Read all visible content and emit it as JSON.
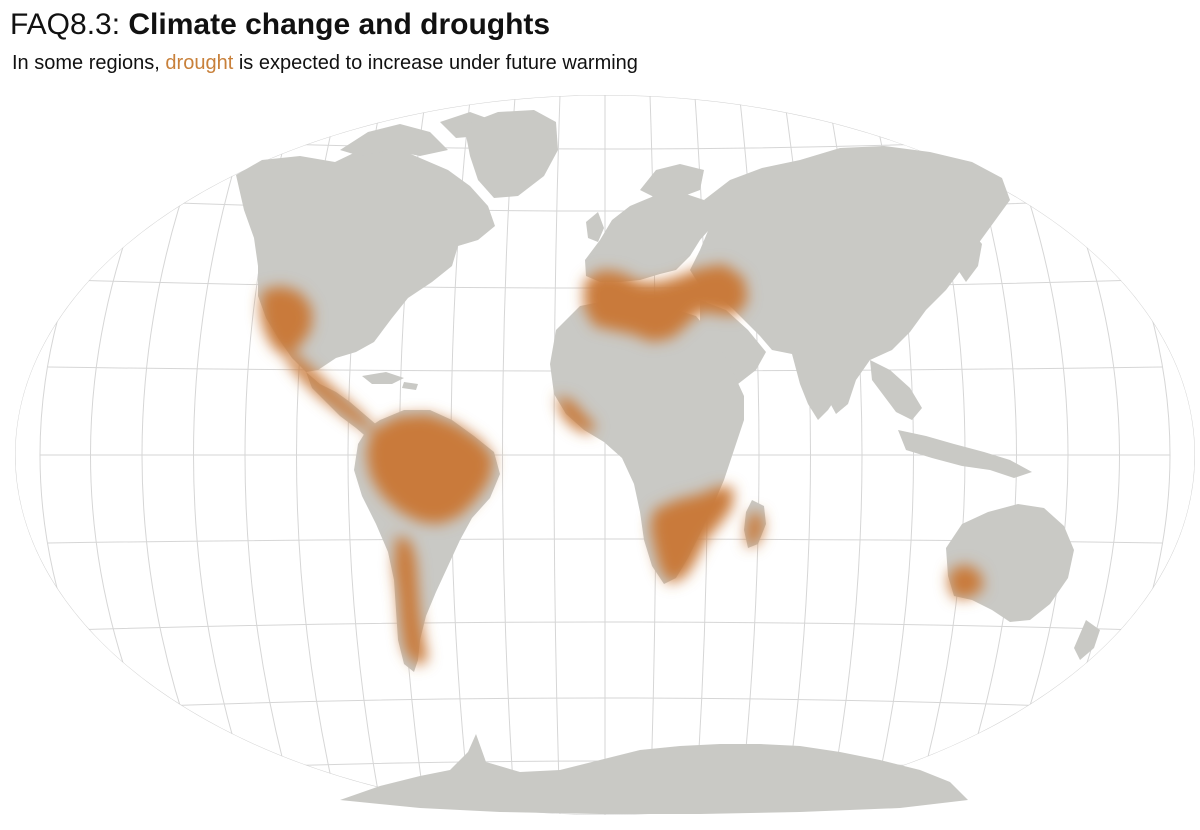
{
  "header": {
    "title_prefix": "FAQ8.3: ",
    "title_main": "Climate change and droughts",
    "subtitle_before": "In some regions, ",
    "subtitle_highlight": "drought",
    "subtitle_after": " is expected to increase under future warming"
  },
  "colors": {
    "land": "#c9c9c5",
    "drought": "#c97a3a",
    "graticule": "#d6d6d6",
    "highlight_text": "#c8803a"
  },
  "map": {
    "projection": "Winkel tripel",
    "graticule_spacing_deg": 15,
    "drought_regions": [
      "western-north-america",
      "mexico-central-america",
      "amazon",
      "west-south-america",
      "mediterranean",
      "west-africa",
      "southern-africa",
      "madagascar",
      "southwest-australia"
    ]
  }
}
